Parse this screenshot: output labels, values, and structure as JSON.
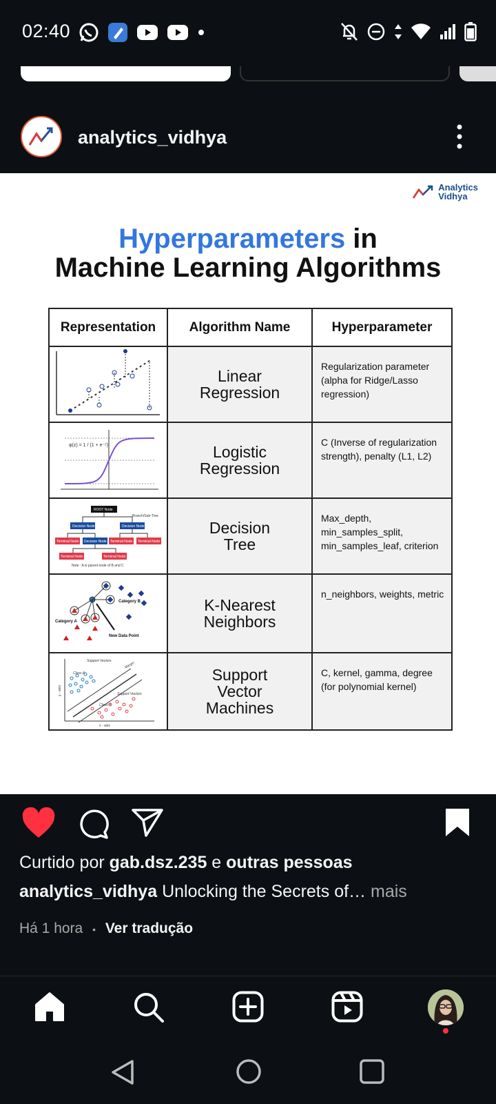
{
  "status_bar": {
    "time": "02:40",
    "left_icons": [
      "whatsapp-icon",
      "app-icon",
      "youtube-icon",
      "youtube-icon",
      "dot-icon"
    ],
    "right_icons": [
      "bell-off-icon",
      "dnd-icon",
      "data-arrows-icon",
      "wifi-icon",
      "signal-icon",
      "battery-icon"
    ]
  },
  "post": {
    "username": "analytics_vidhya",
    "image": {
      "logo_text_1": "Analytics",
      "logo_text_2": "Vidhya",
      "title_highlight": "Hyperparameters",
      "title_rest_1": " in",
      "title_line_2": "Machine Learning Algorithms",
      "headers": [
        "Representation",
        "Algorithm Name",
        "Hyperparameter"
      ],
      "rows": [
        {
          "algo_1": "Linear",
          "algo_2": "Regression",
          "algo_3": "",
          "hyperparameter": "Regularization parameter (alpha for Ridge/Lasso regression)"
        },
        {
          "algo_1": "Logistic",
          "algo_2": "Regression",
          "algo_3": "",
          "hyperparameter": "C (Inverse of regularization strength), penalty (L1, L2)"
        },
        {
          "algo_1": "Decision",
          "algo_2": "Tree",
          "algo_3": "",
          "hyperparameter": "Max_depth, min_samples_split, min_samples_leaf, criterion"
        },
        {
          "algo_1": "K-Nearest",
          "algo_2": "Neighbors",
          "algo_3": "",
          "hyperparameter": "n_neighbors, weights, metric"
        },
        {
          "algo_1": "Support",
          "algo_2": "Vector",
          "algo_3": "Machines",
          "hyperparameter": "C, kernel, gamma, degree (for polynomial kernel)"
        }
      ],
      "sigmoid_formula": "φ(z) = 1 / (1 + e⁻ᶻ)",
      "dt_labels": {
        "root": "ROOT Node",
        "branch": "Branch/Sub-Tree",
        "decision": "Decision Node",
        "terminal": "Terminal Node",
        "note": "Note : A is parent node of B and C"
      },
      "knn_labels": {
        "cat_a": "Category A",
        "cat_b": "Category B",
        "new_point": "New Data Point"
      },
      "svm_labels": {
        "support_vectors": "Support Vectors",
        "class_a": "Class A",
        "class_b": "Class B",
        "margin": "Margin",
        "x_axis": "x - axis",
        "y_axis": "y - axis"
      }
    },
    "liked_prefix": "Curtido por ",
    "liked_user": "gab.dsz.235",
    "liked_mid": " e ",
    "liked_others": "outras pessoas",
    "caption_user": "analytics_vidhya",
    "caption_text": " Unlocking the Secrets of…",
    "caption_more": " mais",
    "time_ago": "Há 1 hora",
    "separator": "•",
    "translate": "Ver tradução",
    "liked": true
  },
  "colors": {
    "background": "#0c1014",
    "like_red": "#ff3040",
    "highlight_blue": "#3377dd",
    "text_secondary": "#a8a8a8"
  }
}
